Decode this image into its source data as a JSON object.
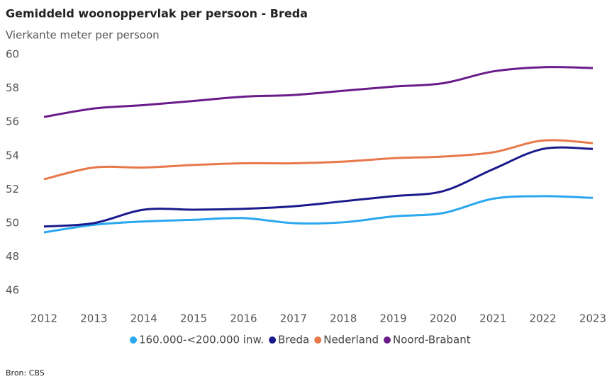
{
  "chart_data": {
    "type": "line",
    "title": "Gemiddeld woonoppervlak per persoon - Breda",
    "subtitle": "Vierkante meter per persoon",
    "source": "Bron: CBS",
    "x": [
      "2012",
      "2013",
      "2014",
      "2015",
      "2016",
      "2017",
      "2018",
      "2019",
      "2020",
      "2021",
      "2022",
      "2023"
    ],
    "series": [
      {
        "name": "160.000-<200.000 inw.",
        "color": "#2aa7ef",
        "values": [
          49.45,
          49.9,
          50.1,
          50.2,
          50.3,
          50.0,
          50.05,
          50.4,
          50.6,
          51.45,
          51.6,
          51.5
        ]
      },
      {
        "name": "Breda",
        "color": "#1a1a8c",
        "values": [
          49.8,
          50.0,
          50.8,
          50.8,
          50.85,
          51.0,
          51.3,
          51.6,
          51.9,
          53.2,
          54.4,
          54.4
        ]
      },
      {
        "name": "Nederland",
        "color": "#e8784a",
        "values": [
          52.6,
          53.3,
          53.3,
          53.45,
          53.55,
          53.55,
          53.65,
          53.85,
          53.95,
          54.2,
          54.9,
          54.75
        ]
      },
      {
        "name": "Noord-Brabant",
        "color": "#6a1b8a",
        "values": [
          56.3,
          56.8,
          57.0,
          57.25,
          57.5,
          57.6,
          57.85,
          58.1,
          58.3,
          59.0,
          59.25,
          59.2
        ]
      }
    ],
    "ylim": [
      45,
      60
    ],
    "yticks": [
      46,
      48,
      50,
      52,
      54,
      56,
      58,
      60
    ],
    "grid": false,
    "legend": "bottom"
  }
}
